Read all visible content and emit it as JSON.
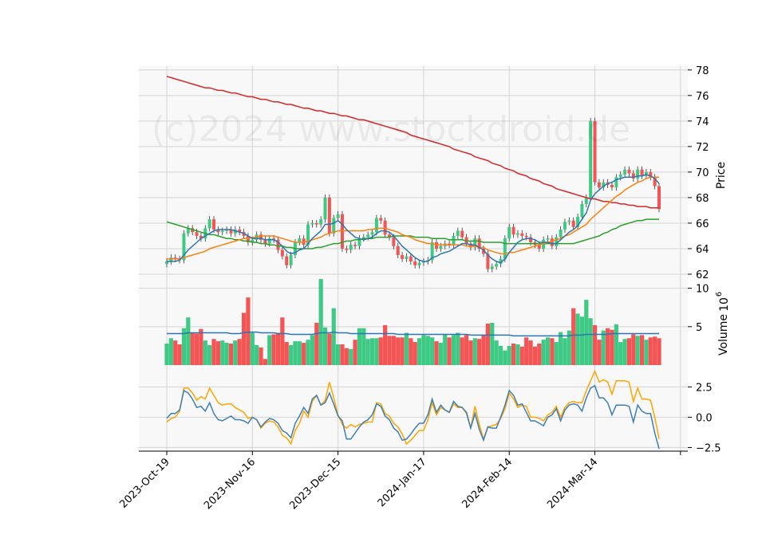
{
  "chart_data": {
    "type": "candlestick",
    "watermark": "(c)2024 www.stockdroid.de",
    "x_tick_labels": [
      "2023-Oct-19",
      "2023-Nov-16",
      "2023-Dec-15",
      "2024-Jan-17",
      "2024-Feb-14",
      "2024-Mar-14"
    ],
    "price_panel": {
      "ylabel": "Price",
      "ylim": [
        61.5,
        78.3
      ],
      "yticks": [
        62,
        64,
        66,
        68,
        70,
        72,
        74,
        76,
        78
      ],
      "close": [
        63.0,
        63.3,
        63.2,
        63.1,
        65.2,
        65.6,
        65.3,
        65.0,
        64.8,
        65.6,
        66.3,
        65.5,
        65.3,
        65.4,
        65.5,
        65.2,
        65.5,
        65.3,
        65.0,
        64.5,
        64.7,
        65.1,
        64.7,
        64.4,
        64.8,
        64.7,
        63.9,
        63.4,
        62.7,
        63.5,
        64.5,
        64.8,
        64.3,
        65.9,
        66.0,
        65.9,
        66.3,
        68.0,
        65.2,
        66.4,
        66.7,
        64.0,
        63.9,
        64.3,
        64.2,
        64.8,
        64.9,
        65.1,
        65.3,
        66.4,
        66.2,
        65.1,
        64.9,
        64.2,
        63.5,
        63.2,
        63.4,
        63.0,
        62.7,
        62.9,
        63.0,
        63.1,
        64.5,
        64.0,
        64.2,
        64.4,
        64.3,
        65.0,
        65.4,
        64.9,
        64.4,
        64.1,
        64.8,
        64.0,
        63.6,
        62.4,
        62.6,
        62.8,
        63.2,
        64.8,
        65.7,
        65.1,
        65.2,
        65.0,
        64.9,
        64.5,
        64.3,
        64.0,
        64.7,
        64.8,
        64.2,
        64.9,
        65.5,
        66.1,
        66.2,
        65.7,
        66.5,
        67.5,
        68.0,
        74.0,
        69.2,
        68.8,
        69.2,
        69.0,
        68.8,
        69.6,
        69.8,
        70.2,
        69.9,
        69.5,
        70.2,
        69.7,
        70.0,
        69.6,
        68.9,
        67.1
      ],
      "ma_fast": [
        63.0,
        63.0,
        63.0,
        63.1,
        63.5,
        63.9,
        64.2,
        64.5,
        64.8,
        65.0,
        65.2,
        65.4,
        65.5,
        65.5,
        65.5,
        65.5,
        65.4,
        65.3,
        65.2,
        65.0,
        64.8,
        64.8,
        64.8,
        64.7,
        64.7,
        64.7,
        64.5,
        64.2,
        63.8,
        63.6,
        63.7,
        63.9,
        64.0,
        64.4,
        64.8,
        65.1,
        65.4,
        65.9,
        65.9,
        66.0,
        66.2,
        65.9,
        65.5,
        65.2,
        64.9,
        64.8,
        64.7,
        64.8,
        64.9,
        65.2,
        65.4,
        65.4,
        65.3,
        65.0,
        64.6,
        64.2,
        63.9,
        63.6,
        63.3,
        63.1,
        63.0,
        63.0,
        63.3,
        63.4,
        63.6,
        63.7,
        63.8,
        64.0,
        64.2,
        64.4,
        64.4,
        64.3,
        64.3,
        64.1,
        63.9,
        63.5,
        63.2,
        63.0,
        62.9,
        63.2,
        63.7,
        64.1,
        64.5,
        64.7,
        64.8,
        64.8,
        64.7,
        64.5,
        64.5,
        64.5,
        64.4,
        64.4,
        64.7,
        65.0,
        65.3,
        65.5,
        65.8,
        66.3,
        66.8,
        67.8,
        68.3,
        68.6,
        68.9,
        69.1,
        69.2,
        69.4,
        69.5,
        69.6,
        69.6,
        69.6,
        69.7,
        69.7,
        69.8,
        69.7,
        69.5,
        69.1
      ],
      "ma_slow": [
        63.2,
        63.2,
        63.2,
        63.2,
        63.3,
        63.4,
        63.5,
        63.6,
        63.7,
        63.8,
        64.0,
        64.1,
        64.2,
        64.3,
        64.4,
        64.5,
        64.6,
        64.7,
        64.8,
        64.8,
        64.9,
        64.9,
        65.0,
        65.0,
        65.0,
        65.0,
        64.9,
        64.8,
        64.7,
        64.6,
        64.5,
        64.5,
        64.5,
        64.6,
        64.7,
        64.8,
        64.9,
        65.1,
        65.2,
        65.3,
        65.4,
        65.4,
        65.4,
        65.4,
        65.4,
        65.4,
        65.4,
        65.5,
        65.5,
        65.6,
        65.6,
        65.6,
        65.5,
        65.4,
        65.3,
        65.1,
        65.0,
        64.9,
        64.7,
        64.6,
        64.5,
        64.4,
        64.4,
        64.3,
        64.3,
        64.3,
        64.3,
        64.3,
        64.3,
        64.3,
        64.2,
        64.2,
        64.2,
        64.1,
        64.1,
        63.9,
        63.8,
        63.7,
        63.6,
        63.6,
        63.7,
        63.7,
        63.8,
        63.9,
        64.0,
        64.1,
        64.2,
        64.3,
        64.4,
        64.5,
        64.6,
        64.7,
        64.8,
        65.0,
        65.1,
        65.3,
        65.5,
        65.7,
        65.9,
        66.3,
        66.6,
        66.9,
        67.2,
        67.5,
        67.8,
        68.1,
        68.3,
        68.6,
        68.8,
        69.0,
        69.2,
        69.3,
        69.5,
        69.6,
        69.6,
        69.6
      ],
      "ma_medium": [
        66.1,
        66.0,
        65.9,
        65.8,
        65.7,
        65.6,
        65.5,
        65.4,
        65.3,
        65.2,
        65.1,
        65.1,
        65.0,
        64.9,
        64.8,
        64.8,
        64.7,
        64.7,
        64.6,
        64.6,
        64.5,
        64.5,
        64.4,
        64.4,
        64.3,
        64.3,
        64.2,
        64.2,
        64.1,
        64.1,
        64.0,
        64.0,
        64.0,
        64.0,
        64.0,
        64.1,
        64.1,
        64.2,
        64.3,
        64.4,
        64.4,
        64.5,
        64.6,
        64.6,
        64.7,
        64.7,
        64.8,
        64.8,
        64.8,
        64.9,
        64.9,
        64.9,
        64.9,
        65.0,
        65.0,
        65.0,
        65.0,
        65.0,
        64.9,
        64.9,
        64.9,
        64.9,
        64.8,
        64.8,
        64.8,
        64.8,
        64.7,
        64.7,
        64.7,
        64.7,
        64.6,
        64.6,
        64.6,
        64.6,
        64.5,
        64.5,
        64.5,
        64.5,
        64.5,
        64.4,
        64.4,
        64.4,
        64.4,
        64.4,
        64.4,
        64.4,
        64.4,
        64.4,
        64.4,
        64.4,
        64.4,
        64.4,
        64.4,
        64.4,
        64.4,
        64.4,
        64.5,
        64.6,
        64.7,
        64.8,
        64.9,
        65.0,
        65.2,
        65.3,
        65.5,
        65.6,
        65.8,
        65.9,
        66.0,
        66.1,
        66.2,
        66.2,
        66.3,
        66.3,
        66.3,
        66.3
      ],
      "ma_long": [
        77.5,
        77.4,
        77.3,
        77.2,
        77.1,
        77.0,
        76.9,
        76.8,
        76.7,
        76.6,
        76.6,
        76.5,
        76.4,
        76.4,
        76.3,
        76.2,
        76.2,
        76.1,
        76.0,
        75.9,
        75.9,
        75.8,
        75.7,
        75.7,
        75.6,
        75.5,
        75.5,
        75.4,
        75.3,
        75.3,
        75.2,
        75.1,
        75.0,
        75.0,
        74.9,
        74.8,
        74.8,
        74.7,
        74.6,
        74.6,
        74.5,
        74.4,
        74.4,
        74.3,
        74.2,
        74.1,
        74.1,
        74.0,
        73.9,
        73.8,
        73.7,
        73.6,
        73.5,
        73.4,
        73.3,
        73.2,
        73.1,
        72.9,
        72.8,
        72.7,
        72.6,
        72.5,
        72.4,
        72.3,
        72.2,
        72.1,
        72.0,
        71.8,
        71.7,
        71.6,
        71.5,
        71.4,
        71.2,
        71.1,
        71.0,
        70.9,
        70.7,
        70.6,
        70.5,
        70.3,
        70.2,
        70.1,
        69.9,
        69.8,
        69.7,
        69.5,
        69.4,
        69.3,
        69.1,
        69.0,
        68.9,
        68.7,
        68.6,
        68.5,
        68.4,
        68.3,
        68.2,
        68.1,
        68.0,
        67.9,
        67.9,
        67.8,
        67.7,
        67.7,
        67.6,
        67.6,
        67.5,
        67.5,
        67.4,
        67.4,
        67.3,
        67.3,
        67.3,
        67.2,
        67.2,
        67.2
      ]
    },
    "volume_panel": {
      "ylabel": "Volume",
      "unit_exponent": "6",
      "ylim": [
        0,
        11
      ],
      "yticks": [
        5,
        10
      ],
      "values": [
        2.8,
        3.5,
        3.2,
        2.7,
        4.8,
        6.2,
        4.2,
        4.1,
        4.7,
        3.2,
        2.6,
        3.4,
        3.1,
        3.2,
        2.9,
        2.8,
        3.2,
        3.4,
        6.8,
        8.8,
        4.2,
        2.6,
        2.3,
        0.8,
        3.9,
        4.0,
        4.2,
        6.2,
        3.0,
        2.6,
        3.1,
        3.1,
        2.9,
        3.3,
        3.9,
        5.5,
        11.2,
        4.9,
        4.1,
        7.4,
        2.7,
        2.7,
        2.2,
        2.1,
        3.3,
        4.8,
        4.8,
        3.4,
        3.5,
        3.5,
        3.6,
        5.2,
        3.8,
        3.8,
        3.6,
        3.6,
        4.2,
        3.5,
        3.0,
        3.5,
        3.9,
        3.8,
        3.6,
        3.1,
        2.9,
        4.0,
        3.6,
        3.9,
        4.2,
        3.6,
        3.9,
        3.2,
        3.5,
        3.4,
        3.9,
        5.4,
        5.5,
        3.2,
        2.5,
        1.9,
        2.5,
        2.8,
        2.7,
        2.4,
        3.6,
        3.2,
        2.4,
        2.8,
        3.3,
        3.6,
        3.5,
        3.0,
        4.3,
        3.5,
        4.5,
        7.4,
        6.7,
        6.3,
        8.5,
        6.1,
        5.2,
        3.3,
        4.5,
        4.8,
        4.6,
        5.3,
        3.0,
        3.4,
        3.5,
        4.0,
        3.8,
        3.9,
        3.3,
        3.6,
        3.7,
        3.5
      ],
      "ma": [
        4.1,
        4.1,
        4.1,
        4.1,
        4.1,
        4.2,
        4.2,
        4.2,
        4.2,
        4.2,
        4.2,
        4.2,
        4.2,
        4.2,
        4.2,
        4.1,
        4.1,
        4.1,
        4.2,
        4.3,
        4.3,
        4.3,
        4.2,
        4.2,
        4.2,
        4.2,
        4.1,
        4.1,
        4.1,
        4.0,
        4.0,
        4.0,
        4.0,
        4.0,
        4.0,
        4.1,
        4.2,
        4.2,
        4.2,
        4.3,
        4.2,
        4.2,
        4.2,
        4.1,
        4.1,
        4.1,
        4.1,
        4.1,
        4.1,
        4.1,
        4.1,
        4.1,
        4.1,
        4.1,
        4.0,
        4.0,
        4.0,
        4.0,
        4.0,
        4.0,
        4.0,
        4.0,
        4.0,
        4.0,
        4.0,
        4.0,
        4.0,
        4.0,
        4.0,
        4.0,
        4.0,
        3.9,
        3.9,
        3.9,
        3.9,
        3.9,
        3.9,
        3.9,
        3.9,
        3.9,
        3.9,
        3.8,
        3.8,
        3.8,
        3.8,
        3.8,
        3.8,
        3.8,
        3.8,
        3.8,
        3.8,
        3.8,
        3.8,
        3.8,
        3.8,
        3.9,
        3.9,
        3.9,
        4.0,
        4.0,
        4.0,
        4.0,
        4.0,
        4.0,
        4.1,
        4.1,
        4.1,
        4.1,
        4.1,
        4.1,
        4.1,
        4.1,
        4.1,
        4.1,
        4.1,
        4.1
      ]
    },
    "oscillator_panel": {
      "ylim": [
        -2.8,
        4.3
      ],
      "yticks": [
        -2.5,
        0.0,
        2.5
      ],
      "ytick_labels": [
        "−2.5",
        "0.0",
        "2.5"
      ],
      "line_a": [
        -0.1,
        0.3,
        0.3,
        0.6,
        2.2,
        2.0,
        1.5,
        0.8,
        0.9,
        0.5,
        1.2,
        0.3,
        -0.2,
        -0.3,
        -0.1,
        0.1,
        -0.2,
        -0.2,
        -0.3,
        -0.5,
        0.0,
        -0.2,
        -0.8,
        -0.4,
        -0.1,
        -0.2,
        -0.5,
        -1.1,
        -1.3,
        -1.7,
        -0.5,
        0.1,
        0.8,
        0.3,
        1.5,
        1.8,
        1.0,
        1.2,
        2.0,
        1.1,
        0.1,
        -0.3,
        -1.8,
        -1.8,
        -1.3,
        -0.8,
        -0.4,
        -0.2,
        0.2,
        1.1,
        0.9,
        0.1,
        -0.2,
        -0.9,
        -1.2,
        -1.9,
        -1.8,
        -1.4,
        -0.9,
        -0.5,
        -0.5,
        0.2,
        1.5,
        0.4,
        1.0,
        0.6,
        0.4,
        1.3,
        0.9,
        0.8,
        0.4,
        -0.9,
        0.3,
        -1.0,
        -1.9,
        -0.8,
        -0.9,
        -0.9,
        0.0,
        1.0,
        2.2,
        1.8,
        1.0,
        1.1,
        0.4,
        -0.3,
        -0.3,
        -0.5,
        -0.7,
        0.0,
        0.2,
        0.7,
        -0.3,
        0.6,
        1.0,
        1.1,
        1.0,
        0.5,
        1.6,
        2.4,
        2.6,
        1.6,
        1.6,
        1.2,
        0.2,
        1.0,
        1.0,
        1.0,
        0.9,
        -0.4,
        1.0,
        0.5,
        0.3,
        0.3,
        -1.3,
        -2.6
      ],
      "line_b": [
        -0.4,
        -0.1,
        0.0,
        0.5,
        2.4,
        2.4,
        2.0,
        1.4,
        1.7,
        1.5,
        2.4,
        1.8,
        1.2,
        1.0,
        1.1,
        1.1,
        0.8,
        0.6,
        0.4,
        -0.1,
        0.0,
        -0.2,
        -0.9,
        -0.5,
        -0.3,
        -0.4,
        -0.8,
        -1.5,
        -1.7,
        -2.2,
        -1.1,
        -0.5,
        0.5,
        0.0,
        1.3,
        1.8,
        1.0,
        1.4,
        2.9,
        1.6,
        0.2,
        -0.6,
        -0.9,
        -0.6,
        -0.8,
        -0.6,
        -0.5,
        -0.4,
        -0.4,
        1.2,
        1.1,
        0.3,
        0.1,
        -0.5,
        -0.8,
        -1.4,
        -2.2,
        -1.9,
        -1.5,
        -1.1,
        -1.1,
        -0.2,
        1.2,
        0.2,
        0.8,
        0.6,
        0.4,
        1.1,
        0.8,
        0.8,
        0.3,
        -0.9,
        0.9,
        -0.6,
        -1.8,
        -0.8,
        -0.7,
        -0.6,
        -0.1,
        0.7,
        2.0,
        1.5,
        0.8,
        1.0,
        0.9,
        0.0,
        0.0,
        -0.1,
        -0.3,
        0.2,
        0.4,
        0.9,
        0.0,
        0.8,
        1.2,
        1.3,
        1.2,
        1.2,
        2.2,
        3.0,
        3.8,
        2.9,
        3.1,
        2.9,
        1.9,
        3.0,
        3.0,
        3.0,
        2.9,
        1.3,
        2.4,
        1.5,
        1.5,
        1.4,
        0.0,
        -1.8
      ]
    },
    "colors": {
      "up": "#3ec985",
      "down": "#f45454",
      "ma_fast": "#2c75b4",
      "ma_slow": "#ff7f0e",
      "ma_medium": "#2ca02c",
      "ma_long": "#d62728",
      "volume_ma": "#2c75b4",
      "osc_a": "#3d7fb5",
      "osc_b": "#ffa500",
      "panel_bg": "#f8f8f8",
      "grid": "#d3d3d3"
    }
  }
}
